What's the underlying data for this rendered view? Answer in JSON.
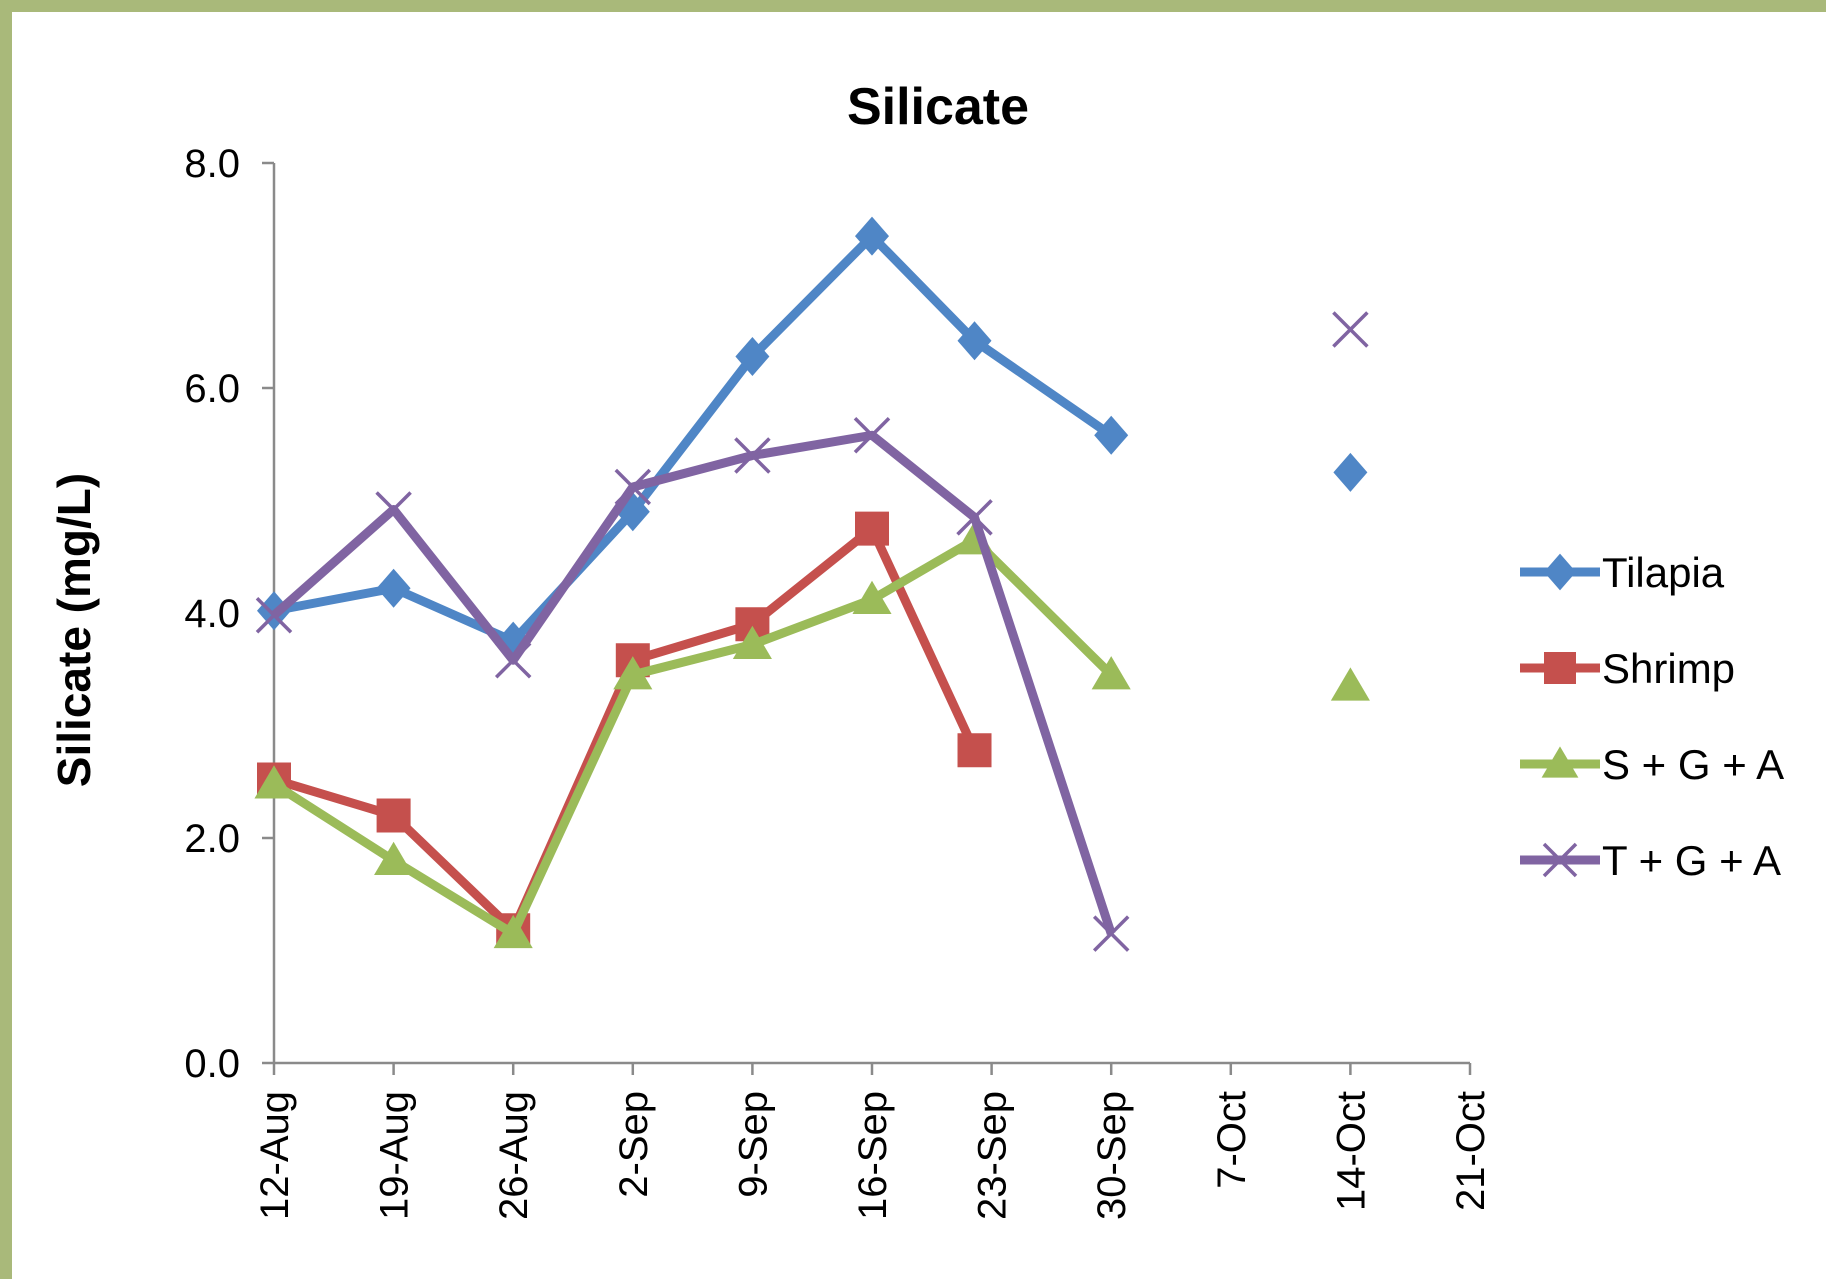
{
  "chart_data": {
    "type": "line",
    "title": "Silicate",
    "xlabel": "",
    "ylabel": "Silicate (mg/L)",
    "ylim": [
      0,
      8
    ],
    "yticks": [
      "0.0",
      "2.0",
      "4.0",
      "6.0",
      "8.0"
    ],
    "x_tick_labels": [
      "12-Aug",
      "19-Aug",
      "26-Aug",
      "2-Sep",
      "9-Sep",
      "16-Sep",
      "23-Sep",
      "30-Sep",
      "7-Oct",
      "14-Oct",
      "21-Oct"
    ],
    "x_range": [
      "12-Aug",
      "21-Oct"
    ],
    "legend_position": "right",
    "grid": false,
    "series": [
      {
        "name": "Tilapia",
        "color": "#4f86c6",
        "marker": "diamond",
        "points": [
          {
            "x": "12-Aug",
            "y": 4.02
          },
          {
            "x": "19-Aug",
            "y": 4.22
          },
          {
            "x": "26-Aug",
            "y": 3.75
          },
          {
            "x": "2-Sep",
            "y": 4.9
          },
          {
            "x": "9-Sep",
            "y": 6.28
          },
          {
            "x": "16-Sep",
            "y": 7.35
          },
          {
            "x": "22-Sep",
            "y": 6.42
          },
          {
            "x": "30-Sep",
            "y": 5.58
          },
          {
            "x": "14-Oct",
            "y": 5.25,
            "isolated": true
          }
        ]
      },
      {
        "name": "Shrimp",
        "color": "#c5504d",
        "marker": "square",
        "points": [
          {
            "x": "12-Aug",
            "y": 2.52
          },
          {
            "x": "19-Aug",
            "y": 2.2
          },
          {
            "x": "26-Aug",
            "y": 1.18
          },
          {
            "x": "2-Sep",
            "y": 3.58
          },
          {
            "x": "9-Sep",
            "y": 3.9
          },
          {
            "x": "16-Sep",
            "y": 4.75
          },
          {
            "x": "22-Sep",
            "y": 2.78
          }
        ]
      },
      {
        "name": "S + G + A",
        "color": "#9bbb59",
        "marker": "triangle",
        "points": [
          {
            "x": "12-Aug",
            "y": 2.48
          },
          {
            "x": "19-Aug",
            "y": 1.8
          },
          {
            "x": "26-Aug",
            "y": 1.15
          },
          {
            "x": "2-Sep",
            "y": 3.45
          },
          {
            "x": "9-Sep",
            "y": 3.72
          },
          {
            "x": "16-Sep",
            "y": 4.12
          },
          {
            "x": "22-Sep",
            "y": 4.65
          },
          {
            "x": "30-Sep",
            "y": 3.45
          },
          {
            "x": "14-Oct",
            "y": 3.35,
            "isolated": true
          }
        ]
      },
      {
        "name": "T + G + A",
        "color": "#8064a2",
        "marker": "x",
        "points": [
          {
            "x": "12-Aug",
            "y": 3.98
          },
          {
            "x": "19-Aug",
            "y": 4.92
          },
          {
            "x": "26-Aug",
            "y": 3.58
          },
          {
            "x": "2-Sep",
            "y": 5.12
          },
          {
            "x": "9-Sep",
            "y": 5.4
          },
          {
            "x": "16-Sep",
            "y": 5.58
          },
          {
            "x": "22-Sep",
            "y": 4.85
          },
          {
            "x": "30-Sep",
            "y": 1.15
          },
          {
            "x": "14-Oct",
            "y": 6.52,
            "isolated": true
          }
        ]
      }
    ]
  }
}
